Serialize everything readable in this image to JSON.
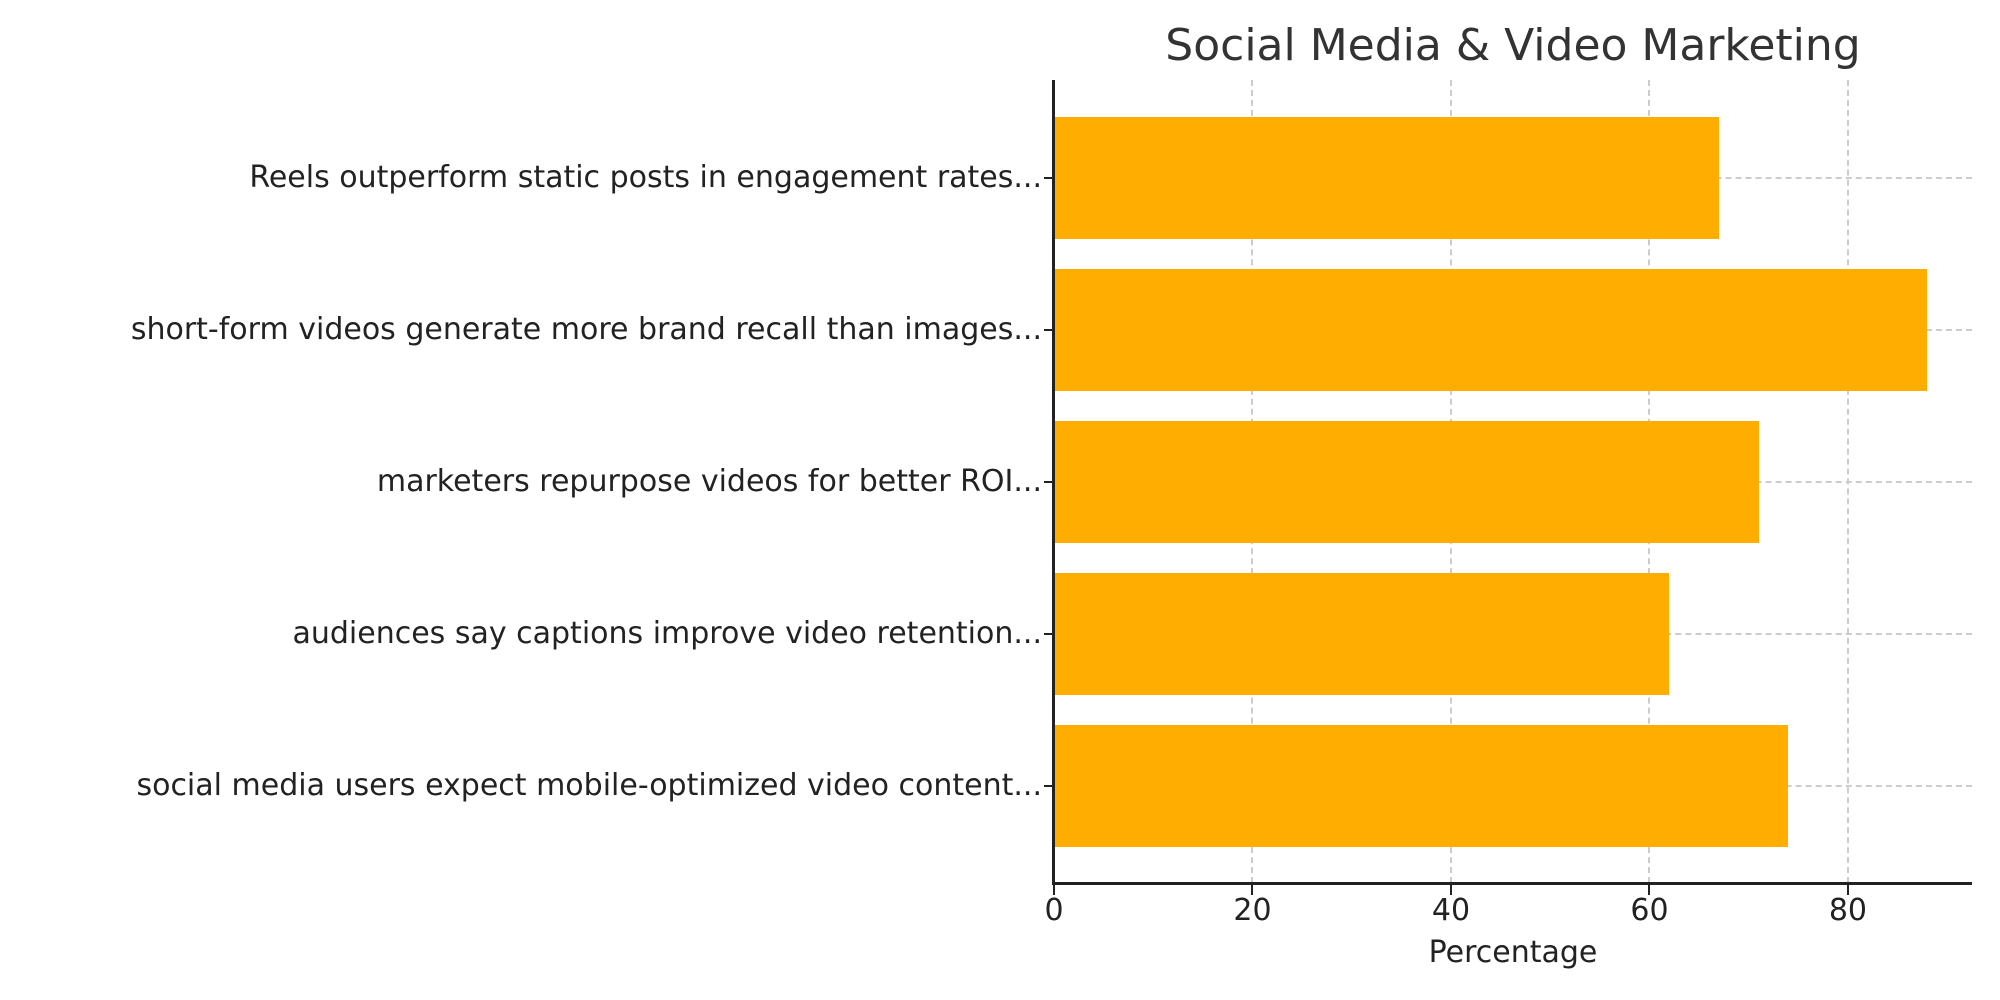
{
  "chart_data": {
    "type": "bar",
    "orientation": "horizontal",
    "title": "Social Media & Video Marketing",
    "xlabel": "Percentage",
    "ylabel": "",
    "xlim": [
      0,
      92.5
    ],
    "xticks": [
      0,
      20,
      40,
      60,
      80
    ],
    "grid": true,
    "bar_color": "#FFAE00",
    "categories": [
      "Reels outperform static posts in engagement rates...",
      "short-form videos generate more brand recall than images...",
      "marketers repurpose videos for better ROI...",
      "audiences say captions improve video retention...",
      "social media users expect mobile-optimized video content..."
    ],
    "values": [
      67,
      88,
      71,
      62,
      74
    ]
  }
}
